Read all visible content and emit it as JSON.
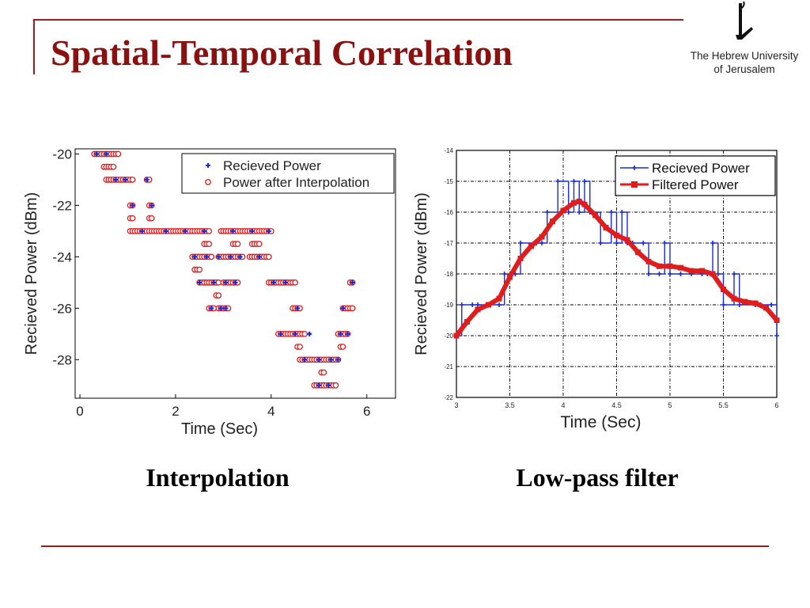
{
  "slide": {
    "title": "Spatial-Temporal Correlation",
    "logo_text_line1": "The Hebrew University",
    "logo_text_line2": "of Jerusalem",
    "colors": {
      "accent": "#9b1b1f",
      "title": "#8b1010"
    }
  },
  "captions": [
    "Interpolation",
    "Low-pass filter"
  ],
  "chart_data": [
    {
      "type": "scatter",
      "title": "",
      "xlabel": "Time (Sec)",
      "ylabel": "Recieved Power (dBm)",
      "xlim": [
        -0.1,
        6.6
      ],
      "ylim": [
        -29.5,
        -19.8
      ],
      "xticks": [
        "0",
        "2",
        "4",
        "6"
      ],
      "xtick_values": [
        0,
        2,
        4,
        6
      ],
      "yticks": [
        "-20",
        "-22",
        "-24",
        "-26",
        "-28"
      ],
      "ytick_values": [
        -20,
        -22,
        -24,
        -26,
        -28
      ],
      "grid": false,
      "legend_position": "top-right",
      "series": [
        {
          "name": "Recieved Power",
          "color": "#1a2bd6",
          "marker": "plus",
          "points": [
            [
              0.35,
              -20
            ],
            [
              0.55,
              -20
            ],
            [
              0.75,
              -21
            ],
            [
              0.95,
              -21
            ],
            [
              1.4,
              -21
            ],
            [
              1.1,
              -22
            ],
            [
              1.5,
              -22
            ],
            [
              1.3,
              -23
            ],
            [
              1.8,
              -23
            ],
            [
              2.2,
              -23
            ],
            [
              2.6,
              -23
            ],
            [
              3.2,
              -23
            ],
            [
              3.6,
              -23
            ],
            [
              3.95,
              -23
            ],
            [
              2.4,
              -24
            ],
            [
              2.65,
              -24
            ],
            [
              2.9,
              -24
            ],
            [
              3.15,
              -24
            ],
            [
              3.35,
              -24
            ],
            [
              3.75,
              -24
            ],
            [
              2.5,
              -25
            ],
            [
              2.8,
              -25
            ],
            [
              3.05,
              -25
            ],
            [
              3.25,
              -25
            ],
            [
              2.75,
              -26
            ],
            [
              2.95,
              -26
            ],
            [
              3.05,
              -26
            ],
            [
              4.05,
              -25
            ],
            [
              4.3,
              -25
            ],
            [
              4.55,
              -26
            ],
            [
              4.2,
              -27
            ],
            [
              4.5,
              -27
            ],
            [
              4.8,
              -27
            ],
            [
              5.45,
              -27
            ],
            [
              5.6,
              -27
            ],
            [
              4.7,
              -28
            ],
            [
              5.0,
              -28
            ],
            [
              5.25,
              -28
            ],
            [
              5.4,
              -28
            ],
            [
              5.0,
              -29
            ],
            [
              5.2,
              -29
            ],
            [
              5.5,
              -26
            ],
            [
              5.7,
              -25
            ]
          ]
        },
        {
          "name": "Power after Interpolation",
          "color": "#e11c1c",
          "marker": "circle-open",
          "runs": [
            [
              0.3,
              0.8,
              -20
            ],
            [
              0.5,
              0.7,
              -20.5
            ],
            [
              0.55,
              1.1,
              -21
            ],
            [
              1.4,
              1.45,
              -21
            ],
            [
              1.05,
              1.1,
              -22
            ],
            [
              1.45,
              1.5,
              -22
            ],
            [
              1.05,
              1.1,
              -22.5
            ],
            [
              1.45,
              1.5,
              -22.5
            ],
            [
              1.05,
              2.7,
              -23
            ],
            [
              2.6,
              2.7,
              -23.5
            ],
            [
              2.95,
              3.1,
              -23
            ],
            [
              3.15,
              4.0,
              -23
            ],
            [
              3.2,
              3.3,
              -23.5
            ],
            [
              3.6,
              3.75,
              -23.5
            ],
            [
              2.35,
              2.75,
              -24
            ],
            [
              2.9,
              3.4,
              -24
            ],
            [
              3.55,
              3.95,
              -24
            ],
            [
              2.4,
              2.5,
              -24.5
            ],
            [
              2.5,
              2.9,
              -25
            ],
            [
              3.0,
              3.3,
              -25
            ],
            [
              2.85,
              2.9,
              -25.5
            ],
            [
              2.7,
              2.8,
              -26
            ],
            [
              2.9,
              3.1,
              -26
            ],
            [
              3.95,
              4.5,
              -25
            ],
            [
              4.45,
              4.6,
              -26
            ],
            [
              4.15,
              4.7,
              -27
            ],
            [
              4.55,
              4.6,
              -27.5
            ],
            [
              4.6,
              5.4,
              -28
            ],
            [
              4.9,
              5.35,
              -29
            ],
            [
              5.05,
              5.1,
              -28.5
            ],
            [
              5.4,
              5.6,
              -27
            ],
            [
              5.45,
              5.5,
              -27.5
            ],
            [
              5.5,
              5.7,
              -26
            ],
            [
              5.65,
              5.7,
              -25
            ]
          ]
        }
      ]
    },
    {
      "type": "line",
      "title": "",
      "xlabel": "Time (Sec)",
      "ylabel": "Recieved Power (dBm)",
      "xlim": [
        3,
        6
      ],
      "ylim": [
        -22,
        -14
      ],
      "xticks": [
        "3",
        "3.5",
        "4",
        "4.5",
        "5",
        "5.5",
        "6"
      ],
      "xtick_values": [
        3,
        3.5,
        4,
        4.5,
        5,
        5.5,
        6
      ],
      "yticks": [
        "-14",
        "-15",
        "-16",
        "-17",
        "-18",
        "-19",
        "-20",
        "-21",
        "-22"
      ],
      "ytick_values": [
        -14,
        -15,
        -16,
        -17,
        -18,
        -19,
        -20,
        -21,
        -22
      ],
      "grid": true,
      "legend_position": "top-right",
      "series": [
        {
          "name": "Recieved Power",
          "color": "#1a2bd6",
          "steps": [
            [
              3.0,
              -20
            ],
            [
              3.05,
              -19
            ],
            [
              3.15,
              -19
            ],
            [
              3.2,
              -19
            ],
            [
              3.4,
              -19
            ],
            [
              3.45,
              -18
            ],
            [
              3.55,
              -18
            ],
            [
              3.6,
              -17
            ],
            [
              3.75,
              -17
            ],
            [
              3.8,
              -17
            ],
            [
              3.85,
              -16
            ],
            [
              3.95,
              -15
            ],
            [
              4.05,
              -16
            ],
            [
              4.1,
              -15
            ],
            [
              4.15,
              -16
            ],
            [
              4.2,
              -15
            ],
            [
              4.25,
              -16
            ],
            [
              4.35,
              -17
            ],
            [
              4.45,
              -16
            ],
            [
              4.5,
              -17
            ],
            [
              4.55,
              -16
            ],
            [
              4.6,
              -17
            ],
            [
              4.65,
              -17
            ],
            [
              4.75,
              -17
            ],
            [
              4.8,
              -18
            ],
            [
              4.9,
              -18
            ],
            [
              4.95,
              -17
            ],
            [
              5.0,
              -18
            ],
            [
              5.1,
              -18
            ],
            [
              5.2,
              -18
            ],
            [
              5.3,
              -18
            ],
            [
              5.35,
              -18
            ],
            [
              5.4,
              -17
            ],
            [
              5.45,
              -18
            ],
            [
              5.5,
              -19
            ],
            [
              5.6,
              -18
            ],
            [
              5.65,
              -19
            ],
            [
              5.8,
              -19
            ],
            [
              5.85,
              -19
            ],
            [
              5.95,
              -19
            ],
            [
              6.0,
              -20
            ]
          ]
        },
        {
          "name": "Filtered Power",
          "color": "#e11c1c",
          "points": [
            [
              3.0,
              -20
            ],
            [
              3.1,
              -19.55
            ],
            [
              3.2,
              -19.15
            ],
            [
              3.3,
              -19.0
            ],
            [
              3.4,
              -18.8
            ],
            [
              3.5,
              -18.1
            ],
            [
              3.6,
              -17.5
            ],
            [
              3.7,
              -17.1
            ],
            [
              3.8,
              -16.8
            ],
            [
              3.9,
              -16.3
            ],
            [
              4.0,
              -15.95
            ],
            [
              4.1,
              -15.7
            ],
            [
              4.15,
              -15.65
            ],
            [
              4.2,
              -15.75
            ],
            [
              4.3,
              -16.1
            ],
            [
              4.4,
              -16.5
            ],
            [
              4.5,
              -16.75
            ],
            [
              4.6,
              -16.9
            ],
            [
              4.7,
              -17.3
            ],
            [
              4.8,
              -17.6
            ],
            [
              4.9,
              -17.75
            ],
            [
              5.0,
              -17.75
            ],
            [
              5.1,
              -17.8
            ],
            [
              5.2,
              -17.9
            ],
            [
              5.3,
              -17.9
            ],
            [
              5.4,
              -18.0
            ],
            [
              5.5,
              -18.5
            ],
            [
              5.6,
              -18.8
            ],
            [
              5.7,
              -18.9
            ],
            [
              5.8,
              -18.95
            ],
            [
              5.9,
              -19.1
            ],
            [
              6.0,
              -19.5
            ]
          ]
        }
      ]
    }
  ]
}
